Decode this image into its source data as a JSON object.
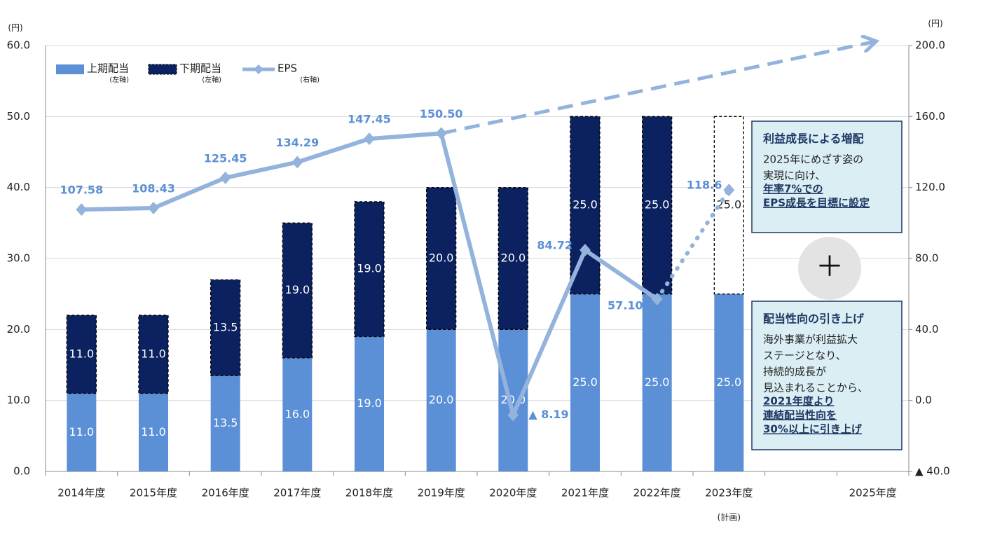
{
  "chart_data": {
    "type": "bar_line",
    "y_unit": "(円)",
    "y2_unit": "(円)",
    "categories": [
      "2014年度",
      "2015年度",
      "2016年度",
      "2017年度",
      "2018年度",
      "2019年度",
      "2020年度",
      "2021年度",
      "2022年度",
      "2023年度",
      null,
      "2025年度"
    ],
    "category_note": "(計画)",
    "series": [
      {
        "name": "上期配当",
        "axis_note": "(左軸)",
        "color": "#5b8fd6",
        "values": [
          11,
          11,
          13.5,
          16,
          19,
          20,
          20,
          25,
          25,
          25,
          null,
          null
        ],
        "value_labels": [
          "11.0",
          "11.0",
          "13.5",
          "16.0",
          "19.0",
          "20.0",
          "20.0",
          "25.0",
          "25.0",
          "25.0",
          null,
          null
        ]
      },
      {
        "name": "下期配当",
        "axis_note": "(左軸)",
        "color": "#0b2160",
        "values": [
          11,
          11,
          13.5,
          19,
          19,
          20,
          20,
          25,
          25,
          25,
          null,
          null
        ],
        "value_labels": [
          "11.0",
          "11.0",
          "13.5",
          "19.0",
          "19.0",
          "20.0",
          "20.0",
          "25.0",
          "25.0",
          "25.0",
          null,
          null
        ]
      },
      {
        "name": "EPS",
        "axis_note": "(右軸)",
        "axis": "y2",
        "color": "#94b3dc",
        "values": [
          107.58,
          108.43,
          125.45,
          134.29,
          147.45,
          150.5,
          -8.19,
          84.72,
          57.1,
          118.6,
          null,
          202
        ],
        "value_labels": [
          "107.58",
          "108.43",
          "125.45",
          "134.29",
          "147.45",
          "150.50",
          "▲ 8.19",
          "84.72",
          "57.10",
          "118.6",
          null,
          null
        ]
      }
    ],
    "ylim": [
      0,
      60
    ],
    "yticks": [
      {
        "value": 0,
        "label": "0.0"
      },
      {
        "value": 10,
        "label": "10.0"
      },
      {
        "value": 20,
        "label": "20.0"
      },
      {
        "value": 30,
        "label": "30.0"
      },
      {
        "value": 40,
        "label": "40.0"
      },
      {
        "value": 50,
        "label": "50.0"
      },
      {
        "value": 60,
        "label": "60.0"
      }
    ],
    "y2lim": [
      -40,
      200
    ],
    "y2ticks": [
      {
        "value": -40,
        "label": "▲ 40.0"
      },
      {
        "value": 0,
        "label": "0.0"
      },
      {
        "value": 40,
        "label": "40.0"
      },
      {
        "value": 80,
        "label": "80.0"
      },
      {
        "value": 120,
        "label": "120.0"
      },
      {
        "value": 160,
        "label": "160.0"
      },
      {
        "value": 200,
        "label": "200.0"
      }
    ],
    "grid": true,
    "annotations": [
      {
        "title": "利益成長による増配",
        "lines": [
          "2025年にめざす姿の",
          "実現に向け、"
        ],
        "bold_lines": [
          "年率7%での",
          "EPS成長を目標に設定"
        ]
      },
      {
        "title": "配当性向の引き上げ",
        "lines": [
          "海外事業が利益拡大",
          "ステージとなり、",
          "持続的成長が",
          "見込まれることから、"
        ],
        "bold_lines": [
          "2021年度より",
          "連結配当性向を",
          "30%以上に引き上げ"
        ]
      }
    ],
    "plus": "＋"
  }
}
